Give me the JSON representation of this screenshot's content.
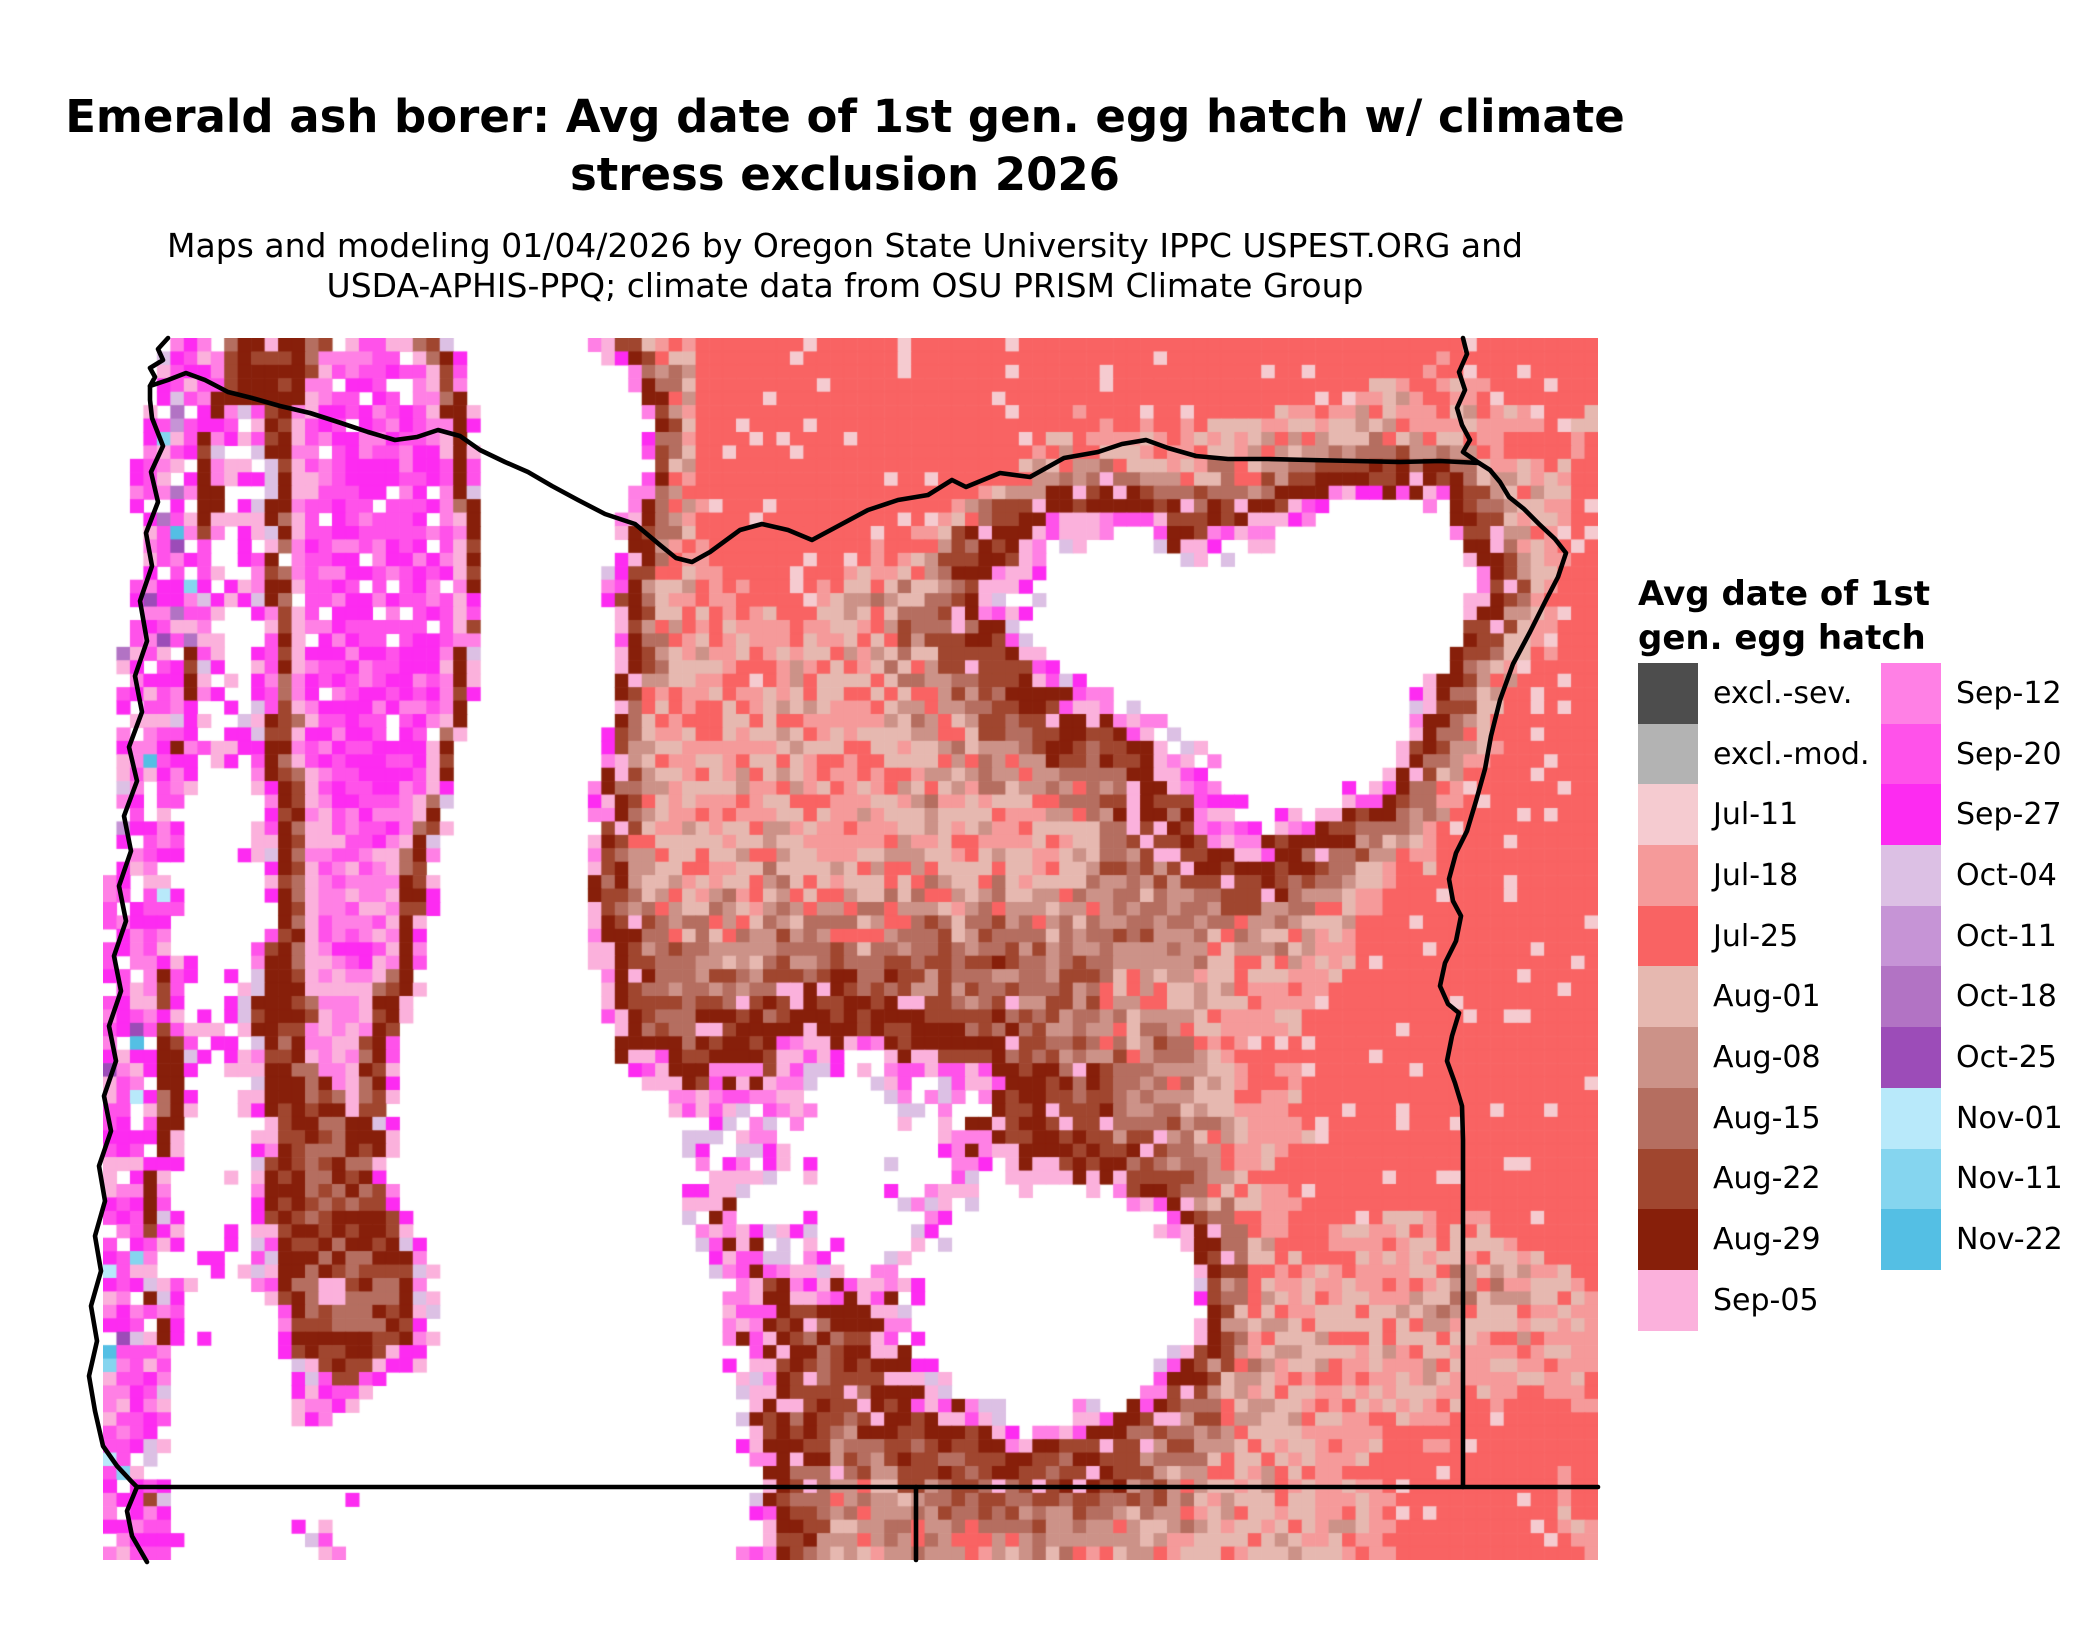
{
  "title": {
    "line1": "Emerald ash borer: Avg date of 1st gen. egg hatch w/ climate",
    "line2": "stress exclusion 2026"
  },
  "subtitle": {
    "line1": "Maps and modeling 01/04/2026 by Oregon State University IPPC USPEST.ORG and",
    "line2": "USDA-APHIS-PPQ; climate data from OSU PRISM Climate Group"
  },
  "legend": {
    "title_line1": "Avg date of 1st",
    "title_line2": "gen. egg hatch",
    "column_left": [
      {
        "label": "excl.-sev.",
        "color": "#4d4d4d"
      },
      {
        "label": "excl.-mod.",
        "color": "#b3b3b3"
      },
      {
        "label": "Jul-11",
        "color": "#f5cbd0"
      },
      {
        "label": "Jul-18",
        "color": "#f59a9a"
      },
      {
        "label": "Jul-25",
        "color": "#f96363"
      },
      {
        "label": "Aug-01",
        "color": "#e6b8b0"
      },
      {
        "label": "Aug-08",
        "color": "#cc9288"
      },
      {
        "label": "Aug-15",
        "color": "#b56e60"
      },
      {
        "label": "Aug-22",
        "color": "#a0462f"
      },
      {
        "label": "Aug-29",
        "color": "#871f0a"
      },
      {
        "label": "Sep-05",
        "color": "#fbb1dc"
      }
    ],
    "column_right": [
      {
        "label": "Sep-12",
        "color": "#ff80e5"
      },
      {
        "label": "Sep-20",
        "color": "#ff52ea"
      },
      {
        "label": "Sep-27",
        "color": "#fd2bf1"
      },
      {
        "label": "Oct-04",
        "color": "#dcc0e4"
      },
      {
        "label": "Oct-11",
        "color": "#c694d6"
      },
      {
        "label": "Oct-18",
        "color": "#b273c4"
      },
      {
        "label": "Oct-25",
        "color": "#9c4cb8"
      },
      {
        "label": "Nov-01",
        "color": "#b8e9fa"
      },
      {
        "label": "Nov-11",
        "color": "#85d5ef"
      },
      {
        "label": "Nov-22",
        "color": "#54bfe4"
      }
    ]
  },
  "map": {
    "depicts": "Pixelated phenology raster of Oregon and adjacent state areas",
    "border_color": "#000000",
    "no_data_color": "#ffffff"
  }
}
